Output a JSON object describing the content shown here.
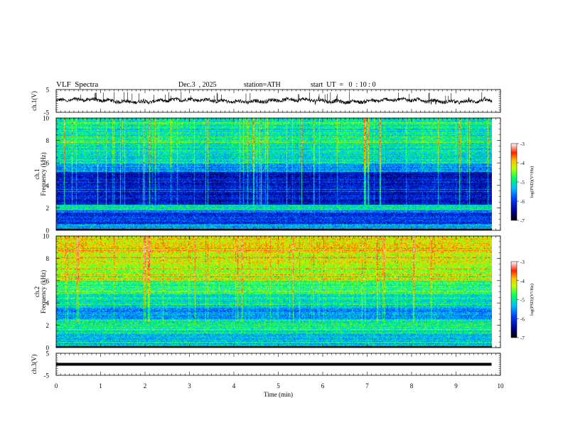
{
  "header": {
    "title": "VLF  Spectra",
    "date": "Dec.3  , 2025",
    "station": "station=ATH",
    "start": "start  UT  =   0  : 10 : 0"
  },
  "chart_data": [
    {
      "type": "line",
      "name": "ch1-voltage",
      "ylabel": "ch.1(V)",
      "ylim": [
        -5,
        5
      ],
      "yticks": [
        "5",
        "-5"
      ],
      "description_value_level": 0.1
    },
    {
      "type": "heatmap",
      "name": "ch1-spectrogram",
      "ylabel": "ch.1\nFrequency  (kHz)",
      "ylabel_lines": [
        "ch.1",
        "Frequency  (kHz)"
      ],
      "ylim": [
        0,
        10
      ],
      "yticks": [
        "0",
        "2",
        "4",
        "6",
        "8",
        "10"
      ],
      "colorbar": {
        "label": "log(PSD)(V²/Hz)",
        "range": [
          -7,
          -3
        ],
        "ticks": [
          "-3",
          "-4",
          "-5",
          "-6",
          "-7"
        ]
      }
    },
    {
      "type": "heatmap",
      "name": "ch2-spectrogram",
      "ylabel_lines": [
        "ch.2",
        "Frequency  (kHz)"
      ],
      "ylim": [
        0,
        10
      ],
      "yticks": [
        "0",
        "2",
        "4",
        "6",
        "8",
        "10"
      ],
      "colorbar": {
        "label": "log(PSD)(V²/Hz)",
        "range": [
          -7,
          -3
        ],
        "ticks": [
          "-3",
          "-4",
          "-5",
          "-6",
          "-7"
        ]
      }
    },
    {
      "type": "line",
      "name": "ch3-voltage",
      "ylabel": "ch.3(V)",
      "ylim": [
        -5,
        5
      ],
      "yticks": [
        "5",
        "-5"
      ],
      "description_value_level": 0.0
    }
  ],
  "xaxis": {
    "label": "Time  (min)",
    "range": [
      0,
      10
    ],
    "ticks": [
      "0",
      "1",
      "2",
      "3",
      "4",
      "5",
      "6",
      "7",
      "8",
      "9",
      "10"
    ],
    "data_end": 9.8
  }
}
